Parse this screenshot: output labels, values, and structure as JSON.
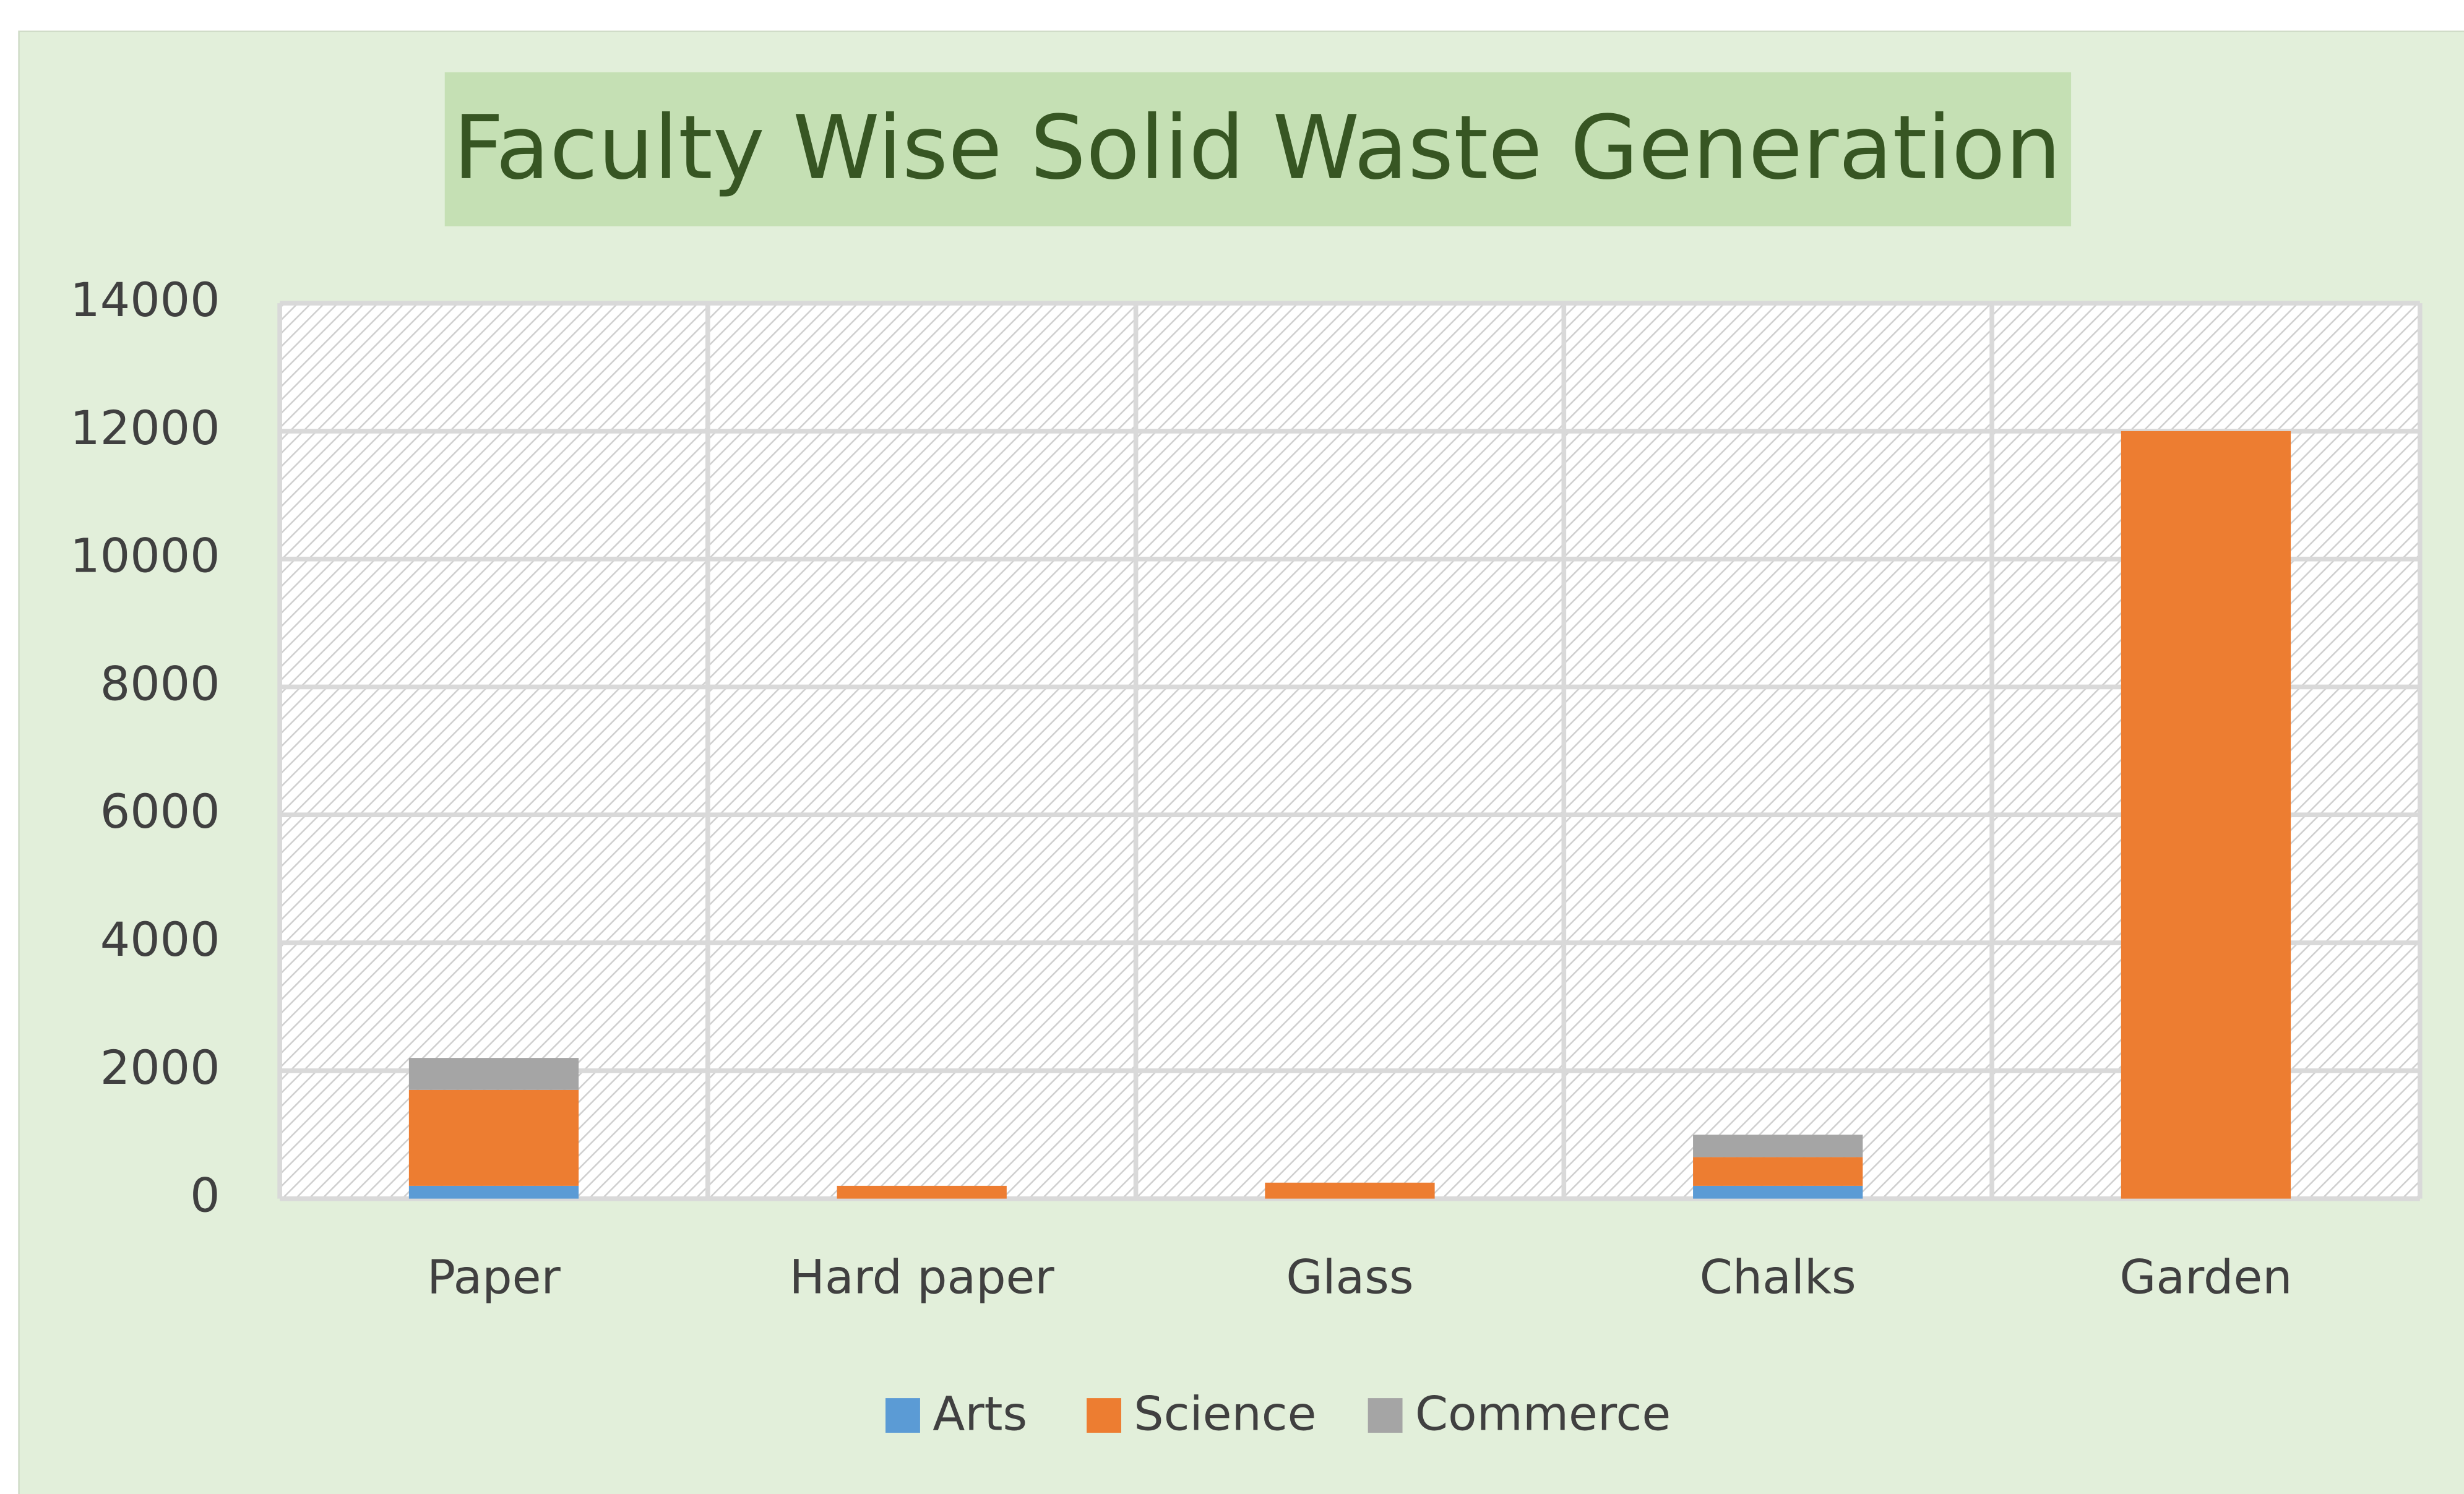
{
  "chart_data": {
    "type": "stacked_bar",
    "title": "Faculty Wise Solid Waste Generation",
    "categories": [
      "Paper",
      "Hard paper",
      "Glass",
      "Chalks",
      "Garden"
    ],
    "series": [
      {
        "name": "Arts",
        "color": "#5b9bd5",
        "values": [
          200,
          0,
          0,
          200,
          0
        ]
      },
      {
        "name": "Science",
        "color": "#ed7d31",
        "values": [
          1500,
          200,
          250,
          450,
          12000
        ]
      },
      {
        "name": "Commerce",
        "color": "#a5a5a5",
        "values": [
          500,
          0,
          0,
          350,
          0
        ]
      }
    ],
    "ylim": [
      0,
      14000
    ],
    "yticks": [
      0,
      2000,
      4000,
      6000,
      8000,
      10000,
      12000,
      14000
    ],
    "grid": true,
    "legend": "bottom"
  }
}
